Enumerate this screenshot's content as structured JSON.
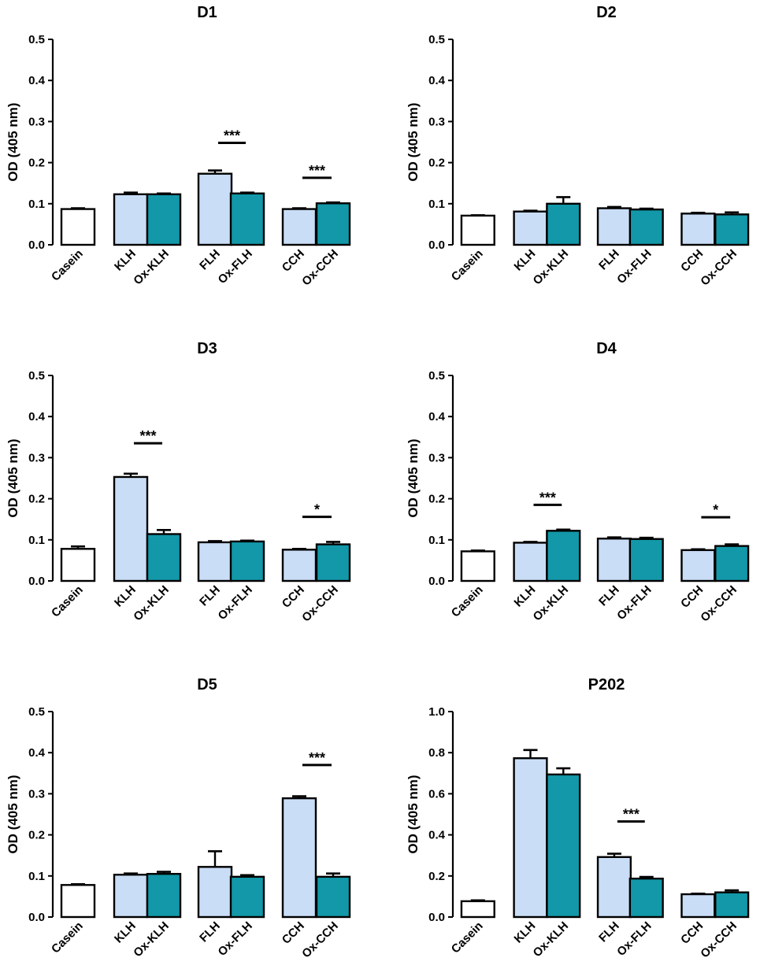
{
  "colors": {
    "casein": "#ffffff",
    "native": "#c9ddf6",
    "oxidized": "#1298a8",
    "stroke": "#000000"
  },
  "chart_data": [
    {
      "type": "bar",
      "title": "D1",
      "ylabel": "OD (405 nm)",
      "ylim": [
        0,
        0.5
      ],
      "yticks": [
        "0.0",
        "0.1",
        "0.2",
        "0.3",
        "0.4",
        "0.5"
      ],
      "categories": [
        "Casein",
        "KLH",
        "Ox-KLH",
        "FLH",
        "Ox-FLH",
        "CCH",
        "Ox-CCH"
      ],
      "values": [
        0.087,
        0.123,
        0.123,
        0.173,
        0.125,
        0.087,
        0.101
      ],
      "errors": [
        0.002,
        0.004,
        0.002,
        0.008,
        0.002,
        0.002,
        0.002
      ],
      "significance": [
        {
          "from": 3,
          "to": 4,
          "label": "***",
          "level": 0.248
        },
        {
          "from": 5,
          "to": 6,
          "label": "***",
          "level": 0.163
        }
      ]
    },
    {
      "type": "bar",
      "title": "D2",
      "ylabel": "OD (405 nm)",
      "ylim": [
        0,
        0.5
      ],
      "yticks": [
        "0.0",
        "0.1",
        "0.2",
        "0.3",
        "0.4",
        "0.5"
      ],
      "categories": [
        "Casein",
        "KLH",
        "Ox-KLH",
        "FLH",
        "Ox-FLH",
        "CCH",
        "Ox-CCH"
      ],
      "values": [
        0.071,
        0.081,
        0.1,
        0.089,
        0.086,
        0.076,
        0.074
      ],
      "errors": [
        0.001,
        0.002,
        0.016,
        0.003,
        0.002,
        0.002,
        0.005
      ],
      "significance": []
    },
    {
      "type": "bar",
      "title": "D3",
      "ylabel": "OD (405 nm)",
      "ylim": [
        0,
        0.5
      ],
      "yticks": [
        "0.0",
        "0.1",
        "0.2",
        "0.3",
        "0.4",
        "0.5"
      ],
      "categories": [
        "Casein",
        "KLH",
        "Ox-KLH",
        "FLH",
        "Ox-FLH",
        "CCH",
        "Ox-CCH"
      ],
      "values": [
        0.078,
        0.253,
        0.114,
        0.094,
        0.096,
        0.076,
        0.089
      ],
      "errors": [
        0.006,
        0.008,
        0.01,
        0.003,
        0.002,
        0.002,
        0.006
      ],
      "significance": [
        {
          "from": 1,
          "to": 2,
          "label": "***",
          "level": 0.335
        },
        {
          "from": 5,
          "to": 6,
          "label": "*",
          "level": 0.156
        }
      ]
    },
    {
      "type": "bar",
      "title": "D4",
      "ylabel": "OD (405 nm)",
      "ylim": [
        0,
        0.5
      ],
      "yticks": [
        "0.0",
        "0.1",
        "0.2",
        "0.3",
        "0.4",
        "0.5"
      ],
      "categories": [
        "Casein",
        "KLH",
        "Ox-KLH",
        "FLH",
        "Ox-FLH",
        "CCH",
        "Ox-CCH"
      ],
      "values": [
        0.072,
        0.093,
        0.122,
        0.103,
        0.102,
        0.075,
        0.085
      ],
      "errors": [
        0.002,
        0.002,
        0.003,
        0.003,
        0.003,
        0.002,
        0.004
      ],
      "significance": [
        {
          "from": 1,
          "to": 2,
          "label": "***",
          "level": 0.185
        },
        {
          "from": 5,
          "to": 6,
          "label": "*",
          "level": 0.155
        }
      ]
    },
    {
      "type": "bar",
      "title": "D5",
      "ylabel": "OD (405 nm)",
      "ylim": [
        0,
        0.5
      ],
      "yticks": [
        "0.0",
        "0.1",
        "0.2",
        "0.3",
        "0.4",
        "0.5"
      ],
      "categories": [
        "Casein",
        "KLH",
        "Ox-KLH",
        "FLH",
        "Ox-FLH",
        "CCH",
        "Ox-CCH"
      ],
      "values": [
        0.078,
        0.103,
        0.105,
        0.122,
        0.098,
        0.289,
        0.098
      ],
      "errors": [
        0.002,
        0.003,
        0.005,
        0.038,
        0.004,
        0.005,
        0.008
      ],
      "significance": [
        {
          "from": 5,
          "to": 6,
          "label": "***",
          "level": 0.37
        }
      ]
    },
    {
      "type": "bar",
      "title": "P202",
      "ylabel": "OD (405 nm)",
      "ylim": [
        0,
        1.0
      ],
      "yticks": [
        "0.0",
        "0.2",
        "0.4",
        "0.6",
        "0.8",
        "1.0"
      ],
      "categories": [
        "Casein",
        "KLH",
        "Ox-KLH",
        "FLH",
        "Ox-FLH",
        "CCH",
        "Ox-CCH"
      ],
      "values": [
        0.077,
        0.773,
        0.694,
        0.292,
        0.187,
        0.111,
        0.12
      ],
      "errors": [
        0.004,
        0.04,
        0.03,
        0.016,
        0.008,
        0.003,
        0.01
      ],
      "significance": [
        {
          "from": 3,
          "to": 4,
          "label": "***",
          "level": 0.465
        }
      ]
    }
  ]
}
